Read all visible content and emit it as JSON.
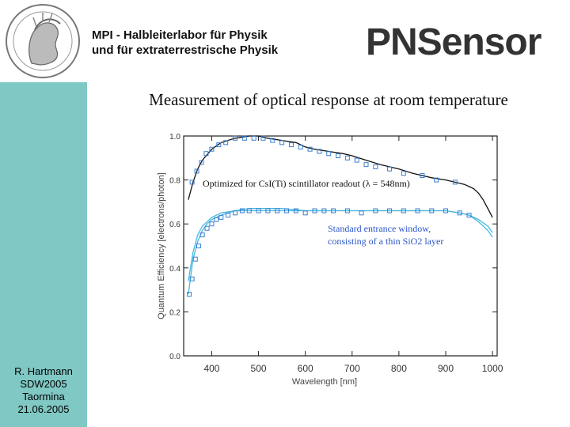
{
  "header": {
    "institute_line1": "MPI  -  Halbleiterlabor für Physik",
    "institute_line2": "und für extraterrestrische Physik",
    "brand": "PNSensor"
  },
  "slide_title": "Measurement of optical response at room temperature",
  "author": {
    "name": "R. Hartmann",
    "event": "SDW2005",
    "place": "Taormina",
    "date": "21.06.2005"
  },
  "colors": {
    "sidebar": "#7fc8c4",
    "series_blue": "#3a7fd0",
    "series_cyan": "#49b8e0",
    "annotation_blue": "#2a55c8"
  },
  "chart_data": {
    "type": "line",
    "xlabel": "Wavelength [nm]",
    "ylabel": "Quantum Efficiency [electrons/photon]",
    "xlim": [
      340,
      1010
    ],
    "ylim": [
      0.0,
      1.0
    ],
    "xticks": [
      400,
      500,
      600,
      700,
      800,
      900,
      1000
    ],
    "yticks": [
      "0.0",
      "0.2",
      "0.4",
      "0.6",
      "0.8",
      "1.0"
    ],
    "annotations": [
      {
        "text": "Optimized for CsI(Ti) scintillator readout (λ = 548nm)",
        "color": "#111111"
      },
      {
        "text": "Standard entrance window,",
        "color": "#2a55c8"
      },
      {
        "text": "consisting of a thin SiO2 layer",
        "color": "#2a55c8"
      }
    ],
    "series": [
      {
        "style": "line",
        "color": "#111111",
        "x": [
          350,
          360,
          370,
          380,
          400,
          420,
          450,
          480,
          500,
          520,
          550,
          580,
          600,
          620,
          650,
          680,
          700,
          730,
          760,
          800,
          830,
          850,
          870,
          900,
          920,
          940,
          950,
          960,
          970,
          980,
          990,
          1000
        ],
        "y": [
          0.71,
          0.79,
          0.85,
          0.89,
          0.94,
          0.97,
          0.99,
          1.0,
          1.0,
          0.99,
          0.98,
          0.97,
          0.95,
          0.94,
          0.93,
          0.92,
          0.91,
          0.89,
          0.87,
          0.85,
          0.83,
          0.82,
          0.81,
          0.8,
          0.79,
          0.78,
          0.77,
          0.76,
          0.74,
          0.71,
          0.67,
          0.63
        ]
      },
      {
        "style": "markers",
        "color": "#3a7fd0",
        "x": [
          358,
          368,
          378,
          388,
          400,
          415,
          430,
          450,
          470,
          490,
          510,
          530,
          550,
          570,
          590,
          610,
          630,
          650,
          670,
          690,
          710,
          730,
          750,
          780,
          810,
          850,
          880,
          920
        ],
        "y": [
          0.79,
          0.84,
          0.88,
          0.92,
          0.94,
          0.96,
          0.97,
          0.99,
          0.99,
          0.99,
          0.99,
          0.98,
          0.97,
          0.96,
          0.95,
          0.94,
          0.93,
          0.92,
          0.91,
          0.9,
          0.89,
          0.87,
          0.86,
          0.85,
          0.83,
          0.82,
          0.8,
          0.79
        ]
      },
      {
        "style": "line",
        "color": "#49b8e0",
        "x": [
          350,
          360,
          370,
          380,
          390,
          400,
          420,
          450,
          480,
          500,
          550,
          600,
          650,
          700,
          750,
          800,
          850,
          900,
          930,
          950,
          970,
          990,
          1000
        ],
        "y": [
          0.28,
          0.44,
          0.52,
          0.57,
          0.6,
          0.62,
          0.64,
          0.66,
          0.66,
          0.66,
          0.66,
          0.66,
          0.66,
          0.66,
          0.66,
          0.66,
          0.66,
          0.66,
          0.65,
          0.64,
          0.62,
          0.59,
          0.56
        ]
      },
      {
        "style": "line",
        "color": "#49b8e0",
        "x": [
          350,
          360,
          370,
          380,
          400,
          420,
          450,
          480,
          500,
          550,
          600,
          650,
          700,
          750,
          800,
          850,
          900,
          930,
          950,
          970,
          990,
          1000
        ],
        "y": [
          0.34,
          0.47,
          0.55,
          0.59,
          0.63,
          0.65,
          0.66,
          0.67,
          0.67,
          0.67,
          0.66,
          0.66,
          0.66,
          0.66,
          0.66,
          0.66,
          0.66,
          0.65,
          0.64,
          0.61,
          0.57,
          0.54
        ]
      },
      {
        "style": "markers",
        "color": "#3a7fd0",
        "x": [
          352,
          358,
          365,
          372,
          380,
          390,
          400,
          410,
          420,
          435,
          450,
          465,
          480,
          500,
          520,
          540,
          560,
          580,
          600,
          620,
          640,
          660,
          690,
          720,
          750,
          780,
          810,
          840,
          870,
          900,
          930,
          950
        ],
        "y": [
          0.28,
          0.35,
          0.44,
          0.5,
          0.55,
          0.58,
          0.6,
          0.62,
          0.63,
          0.64,
          0.65,
          0.66,
          0.66,
          0.66,
          0.66,
          0.66,
          0.66,
          0.66,
          0.65,
          0.66,
          0.66,
          0.66,
          0.66,
          0.65,
          0.66,
          0.66,
          0.66,
          0.66,
          0.66,
          0.66,
          0.65,
          0.64
        ]
      }
    ]
  }
}
